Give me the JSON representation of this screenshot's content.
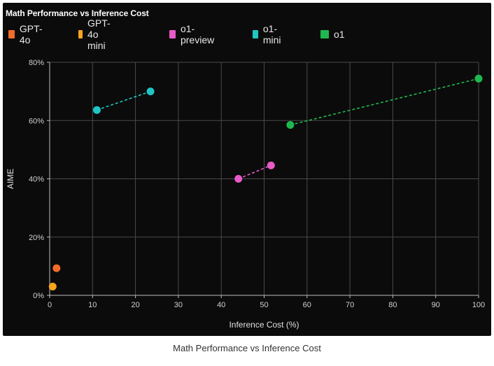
{
  "caption": "Math Performance vs Inference Cost",
  "chart_data": {
    "type": "scatter",
    "title": "Math Performance vs Inference Cost",
    "xlabel": "Inference Cost (%)",
    "ylabel": "AIME",
    "xlim": [
      0,
      100
    ],
    "ylim": [
      0,
      80
    ],
    "xticks": [
      0,
      10,
      20,
      30,
      40,
      50,
      60,
      70,
      80,
      90,
      100
    ],
    "xtick_labels": [
      "0",
      "10",
      "20",
      "30",
      "40",
      "50",
      "60",
      "70",
      "80",
      "90",
      "100"
    ],
    "yticks": [
      0,
      20,
      40,
      60,
      80
    ],
    "ytick_labels": [
      "0%",
      "20%",
      "40%",
      "60%",
      "80%"
    ],
    "grid": true,
    "legend_position": "top-left",
    "series": [
      {
        "name": "GPT-4o",
        "color": "#f26b2a",
        "points": [
          [
            1.6,
            9.3
          ]
        ],
        "connected": false
      },
      {
        "name": "GPT-4o mini",
        "color": "#f7a51c",
        "points": [
          [
            0.7,
            3.0
          ]
        ],
        "connected": false
      },
      {
        "name": "o1-preview",
        "color": "#e85ac8",
        "points": [
          [
            44.0,
            40.0
          ],
          [
            51.6,
            44.6
          ]
        ],
        "connected": true
      },
      {
        "name": "o1-mini",
        "color": "#1fc6c6",
        "points": [
          [
            11.0,
            63.6
          ],
          [
            23.5,
            70.0
          ]
        ],
        "connected": true
      },
      {
        "name": "o1",
        "color": "#1fb850",
        "points": [
          [
            56.1,
            58.5
          ],
          [
            100.0,
            74.4
          ]
        ],
        "connected": true
      }
    ]
  }
}
